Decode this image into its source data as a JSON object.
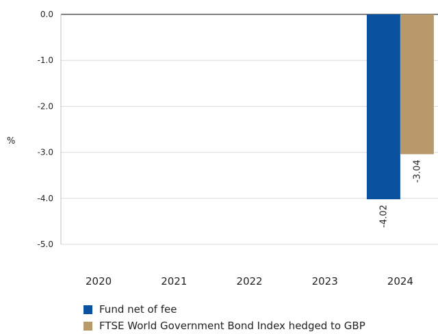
{
  "chart_data": {
    "type": "bar",
    "categories": [
      "2020",
      "2021",
      "2022",
      "2023",
      "2024"
    ],
    "series": [
      {
        "name": "Fund net of fee",
        "values": [
          null,
          null,
          null,
          null,
          -4.02
        ],
        "color": "#0a52a0",
        "labels": [
          "",
          "",
          "",
          "",
          "-4.02"
        ]
      },
      {
        "name": "FTSE World Government Bond Index hedged to GBP",
        "values": [
          null,
          null,
          null,
          null,
          -3.04
        ],
        "color": "#b89a6a",
        "labels": [
          "",
          "",
          "",
          "",
          "-3.04"
        ]
      }
    ],
    "ylabel": "%",
    "ylim": [
      -5.0,
      0.0
    ],
    "yticks": [
      0.0,
      -1.0,
      -2.0,
      -3.0,
      -4.0,
      -5.0
    ],
    "ytick_labels": [
      "0.0",
      "-1.0",
      "-2.0",
      "-3.0",
      "-4.0",
      "-5.0"
    ],
    "grid": true,
    "legend_position": "bottom-left"
  }
}
